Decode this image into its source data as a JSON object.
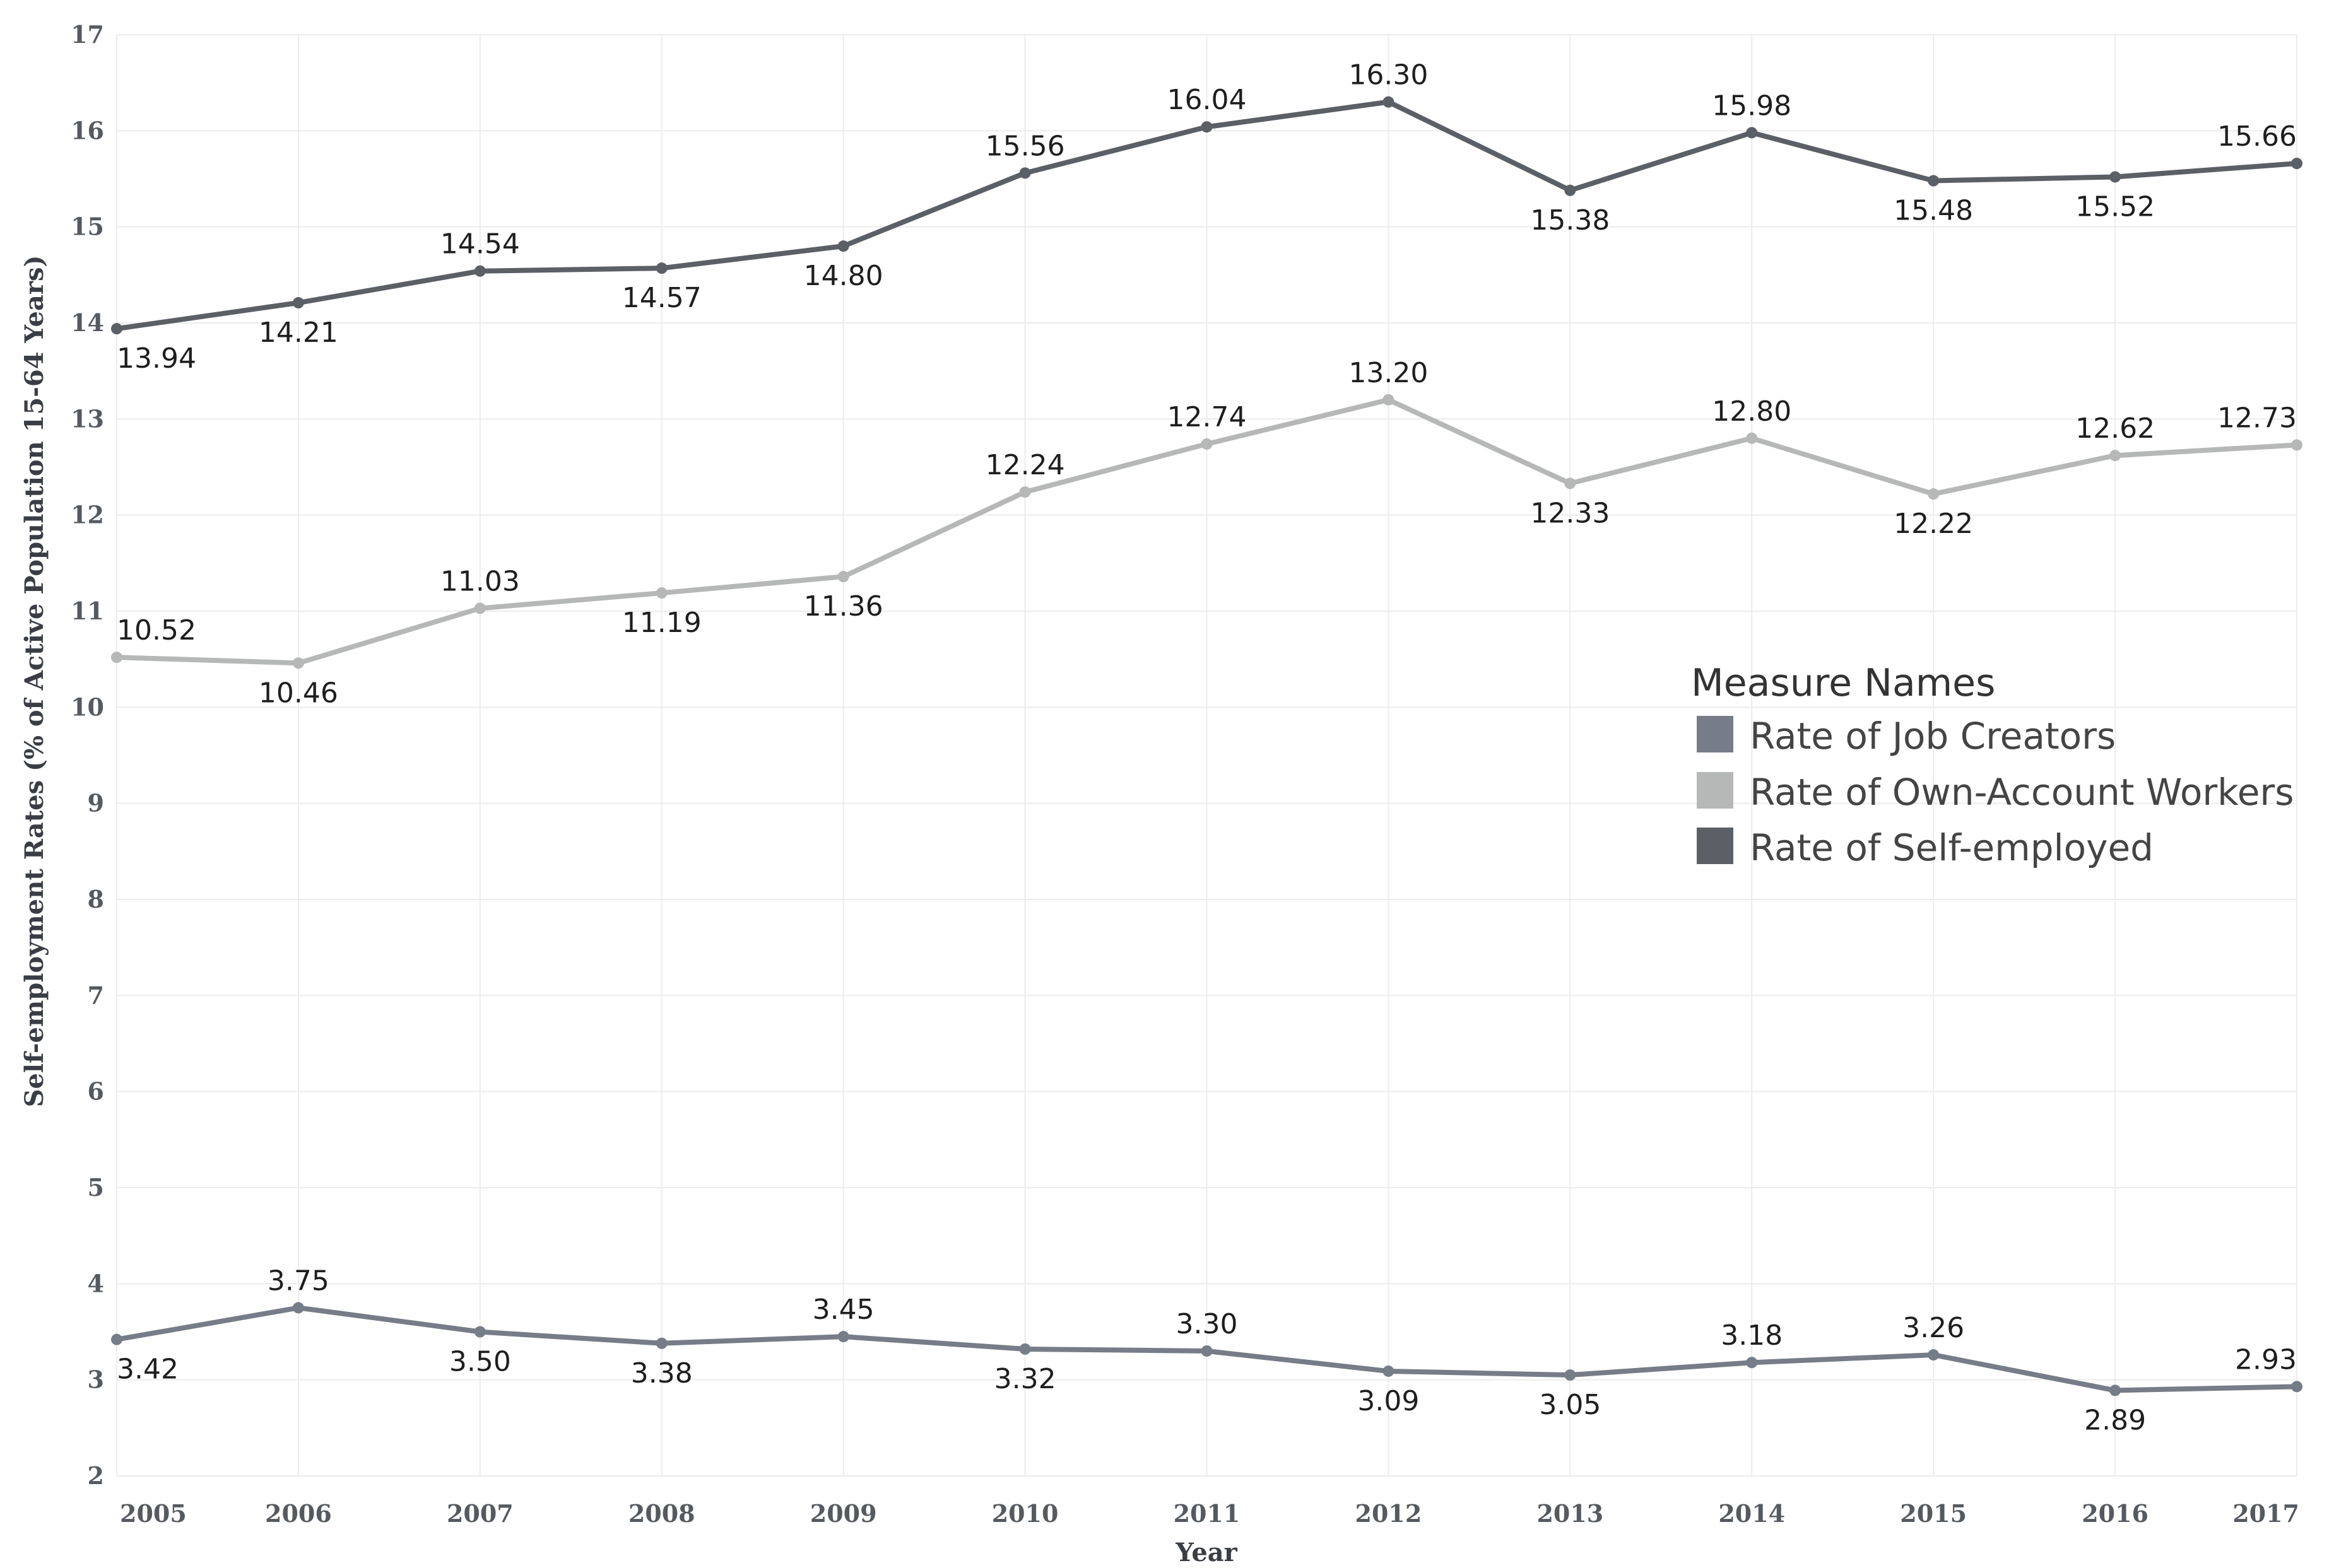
{
  "chart_data": {
    "type": "line",
    "title": "",
    "xlabel": "Year",
    "ylabel": "Self-employment Rates (% of Active Population 15-64 Years)",
    "categories": [
      "2005",
      "2006",
      "2007",
      "2008",
      "2009",
      "2010",
      "2011",
      "2012",
      "2013",
      "2014",
      "2015",
      "2016",
      "2017"
    ],
    "ylim": [
      2,
      17
    ],
    "yticks": [
      "2",
      "3",
      "4",
      "5",
      "6",
      "7",
      "8",
      "9",
      "10",
      "11",
      "12",
      "13",
      "14",
      "15",
      "16",
      "17"
    ],
    "grid": true,
    "legend": {
      "title": "Measure Names",
      "placement": "right",
      "entries": [
        "Rate of Job Creators",
        "Rate of Own-Account Workers",
        "Rate of Self-employed"
      ]
    },
    "series": [
      {
        "name": "Rate of Self-employed",
        "color": "#5b5f66",
        "values": [
          13.94,
          14.21,
          14.54,
          14.57,
          14.8,
          15.56,
          16.04,
          16.3,
          15.38,
          15.98,
          15.48,
          15.52,
          15.66
        ],
        "labels": [
          "13.94",
          "14.21",
          "14.54",
          "14.57",
          "14.80",
          "15.56",
          "16.04",
          "16.30",
          "15.38",
          "15.98",
          "15.48",
          "15.52",
          "15.66"
        ],
        "label_positions": [
          "below",
          "below",
          "above",
          "below",
          "below",
          "above",
          "above",
          "above",
          "below",
          "above",
          "below",
          "below",
          "above"
        ]
      },
      {
        "name": "Rate of Own-Account Workers",
        "color": "#b6b8b7",
        "values": [
          10.52,
          10.46,
          11.03,
          11.19,
          11.36,
          12.24,
          12.74,
          13.2,
          12.33,
          12.8,
          12.22,
          12.62,
          12.73
        ],
        "labels": [
          "10.52",
          "10.46",
          "11.03",
          "11.19",
          "11.36",
          "12.24",
          "12.74",
          "13.20",
          "12.33",
          "12.80",
          "12.22",
          "12.62",
          "12.73"
        ],
        "label_positions": [
          "above",
          "below",
          "above",
          "below",
          "below",
          "above",
          "above",
          "above",
          "below",
          "above",
          "below",
          "above",
          "above"
        ]
      },
      {
        "name": "Rate of Job Creators",
        "color": "#767d89",
        "values": [
          3.42,
          3.75,
          3.5,
          3.38,
          3.45,
          3.32,
          3.3,
          3.09,
          3.05,
          3.18,
          3.26,
          2.89,
          2.93
        ],
        "labels": [
          "3.42",
          "3.75",
          "3.50",
          "3.38",
          "3.45",
          "3.32",
          "3.30",
          "3.09",
          "3.05",
          "3.18",
          "3.26",
          "2.89",
          "2.93"
        ],
        "label_positions": [
          "below",
          "above",
          "below",
          "below",
          "above",
          "below",
          "above",
          "below",
          "below",
          "above",
          "above",
          "below",
          "above"
        ]
      }
    ]
  }
}
